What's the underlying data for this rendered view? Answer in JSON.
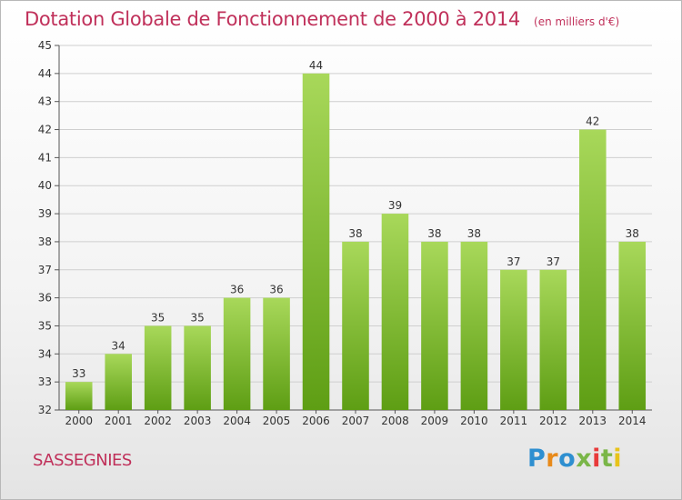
{
  "title": "Dotation Globale de Fonctionnement de 2000 à 2014",
  "unit": "(en milliers d'€)",
  "commune": "SASSEGNIES",
  "logo": {
    "text": "Proxiti",
    "colors": [
      "#2e8fd0",
      "#e88a1a",
      "#2e8fd0",
      "#7ab648",
      "#e83a3a",
      "#7ab648",
      "#e8c31a"
    ]
  },
  "colors": {
    "bar_light": "#a8d85a",
    "bar_dark": "#5e9e14",
    "title": "#c0305a",
    "grid": "#cfcfcf",
    "axis": "#555555"
  },
  "chart_data": {
    "type": "bar",
    "categories": [
      "2000",
      "2001",
      "2002",
      "2003",
      "2004",
      "2005",
      "2006",
      "2007",
      "2008",
      "2009",
      "2010",
      "2011",
      "2012",
      "2013",
      "2014"
    ],
    "values": [
      33,
      34,
      35,
      35,
      36,
      36,
      44,
      38,
      39,
      38,
      38,
      37,
      37,
      42,
      38
    ],
    "ylim": [
      32,
      45
    ],
    "yticks": [
      32,
      33,
      34,
      35,
      36,
      37,
      38,
      39,
      40,
      41,
      42,
      43,
      44,
      45
    ],
    "grid": true,
    "xlabel": "",
    "ylabel": ""
  }
}
